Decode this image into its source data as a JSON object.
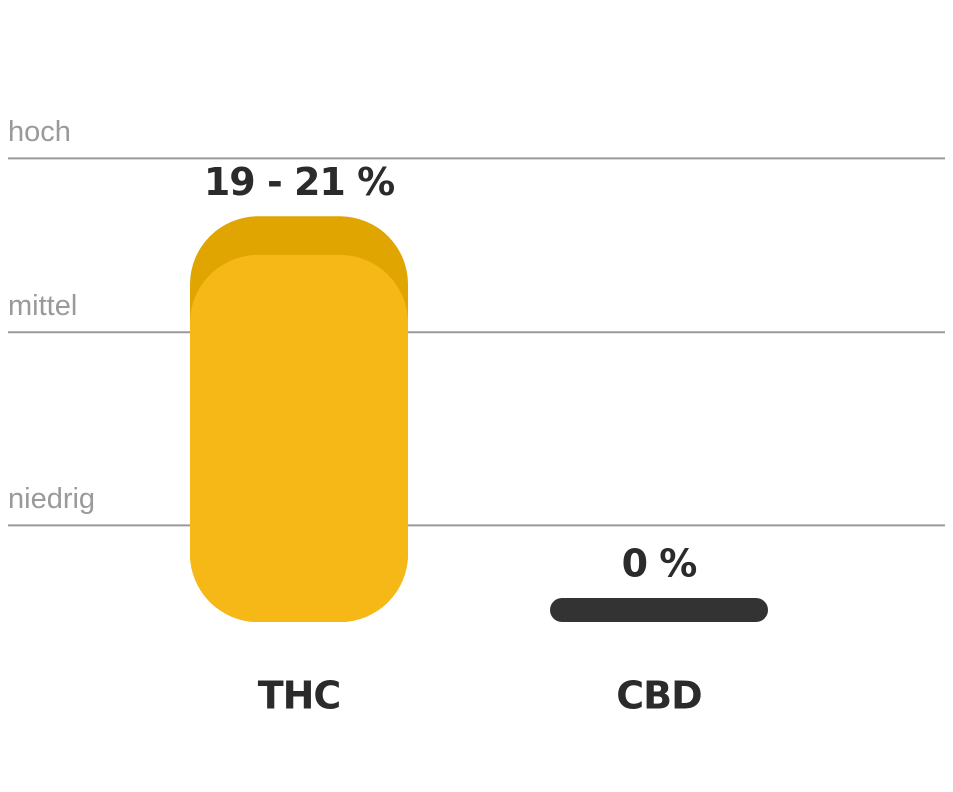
{
  "chart_data": {
    "type": "bar",
    "categories": [
      "THC",
      "CBD"
    ],
    "values": [
      21,
      0
    ],
    "values_low": [
      19,
      0
    ],
    "value_labels": [
      "19 - 21 %",
      "0 %"
    ],
    "colors": [
      "#f6b817",
      "#333333"
    ],
    "range_color": "#e0a500",
    "ylim": [
      0,
      25
    ],
    "yticks": [
      {
        "value": 5,
        "label": "niedrig"
      },
      {
        "value": 15,
        "label": "mittel"
      },
      {
        "value": 24,
        "label": "hoch"
      }
    ],
    "grid": true
  }
}
